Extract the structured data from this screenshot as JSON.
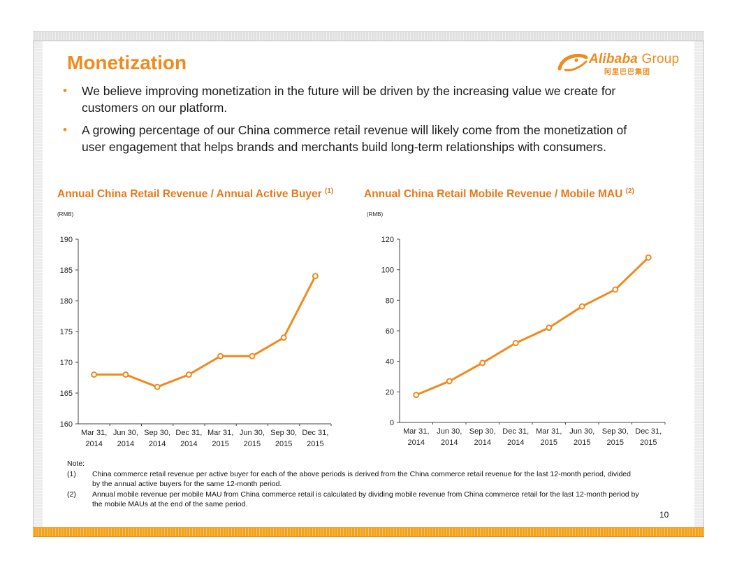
{
  "slide": {
    "title": "Monetization",
    "logo": {
      "brand": "Alibaba",
      "group": "Group",
      "chinese": "阿里巴巴集团"
    },
    "bullets": [
      "We believe improving monetization in the future will be driven by the increasing value we create for customers on our platform.",
      "A growing percentage of our China commerce retail revenue will likely come from the monetization of user engagement that helps brands and merchants build long-term relationships with consumers."
    ],
    "charts": [
      {
        "title": "Annual China Retail Revenue / Annual Active Buyer",
        "footnote_ref": "(1)",
        "unit": "(RMB)"
      },
      {
        "title": "Annual China Retail Mobile Revenue / Mobile MAU",
        "footnote_ref": "(2)",
        "unit": "(RMB)"
      }
    ],
    "notes": {
      "label": "Note:",
      "items": [
        {
          "num": "(1)",
          "text": "China commerce retail revenue per active buyer for each of the above periods is derived from the China commerce retail revenue for the last 12-month period, divided by the annual active buyers for the same 12-month period."
        },
        {
          "num": "(2)",
          "text": "Annual mobile revenue per mobile MAU from China commerce retail is calculated by dividing mobile revenue from China commerce retail for the last 12-month period by the mobile MAUs at the end of the same period."
        }
      ]
    },
    "page_number": "10"
  },
  "colors": {
    "accent": "#f08a1d",
    "line": "#f08a1d"
  },
  "chart_data": [
    {
      "type": "line",
      "title": "Annual China Retail Revenue / Annual Active Buyer",
      "ylabel": "(RMB)",
      "categories": [
        "Mar 31, 2014",
        "Jun 30, 2014",
        "Sep 30, 2014",
        "Dec 31, 2014",
        "Mar 31, 2015",
        "Jun 30, 2015",
        "Sep 30, 2015",
        "Dec 31, 2015"
      ],
      "series": [
        {
          "values": [
            168,
            168,
            166,
            168,
            171,
            171,
            174,
            184
          ]
        }
      ],
      "ylim": [
        160,
        190
      ],
      "yticks": [
        160,
        165,
        170,
        175,
        180,
        185,
        190
      ],
      "grid": false
    },
    {
      "type": "line",
      "title": "Annual China Retail Mobile Revenue / Mobile MAU",
      "ylabel": "(RMB)",
      "categories": [
        "Mar 31, 2014",
        "Jun 30, 2014",
        "Sep 30, 2014",
        "Dec 31, 2014",
        "Mar 31, 2015",
        "Jun 30, 2015",
        "Sep 30, 2015",
        "Dec 31, 2015"
      ],
      "series": [
        {
          "values": [
            18,
            27,
            39,
            52,
            62,
            76,
            87,
            108
          ]
        }
      ],
      "ylim": [
        0,
        120
      ],
      "yticks": [
        0,
        20,
        40,
        60,
        80,
        100,
        120
      ],
      "grid": false
    }
  ]
}
